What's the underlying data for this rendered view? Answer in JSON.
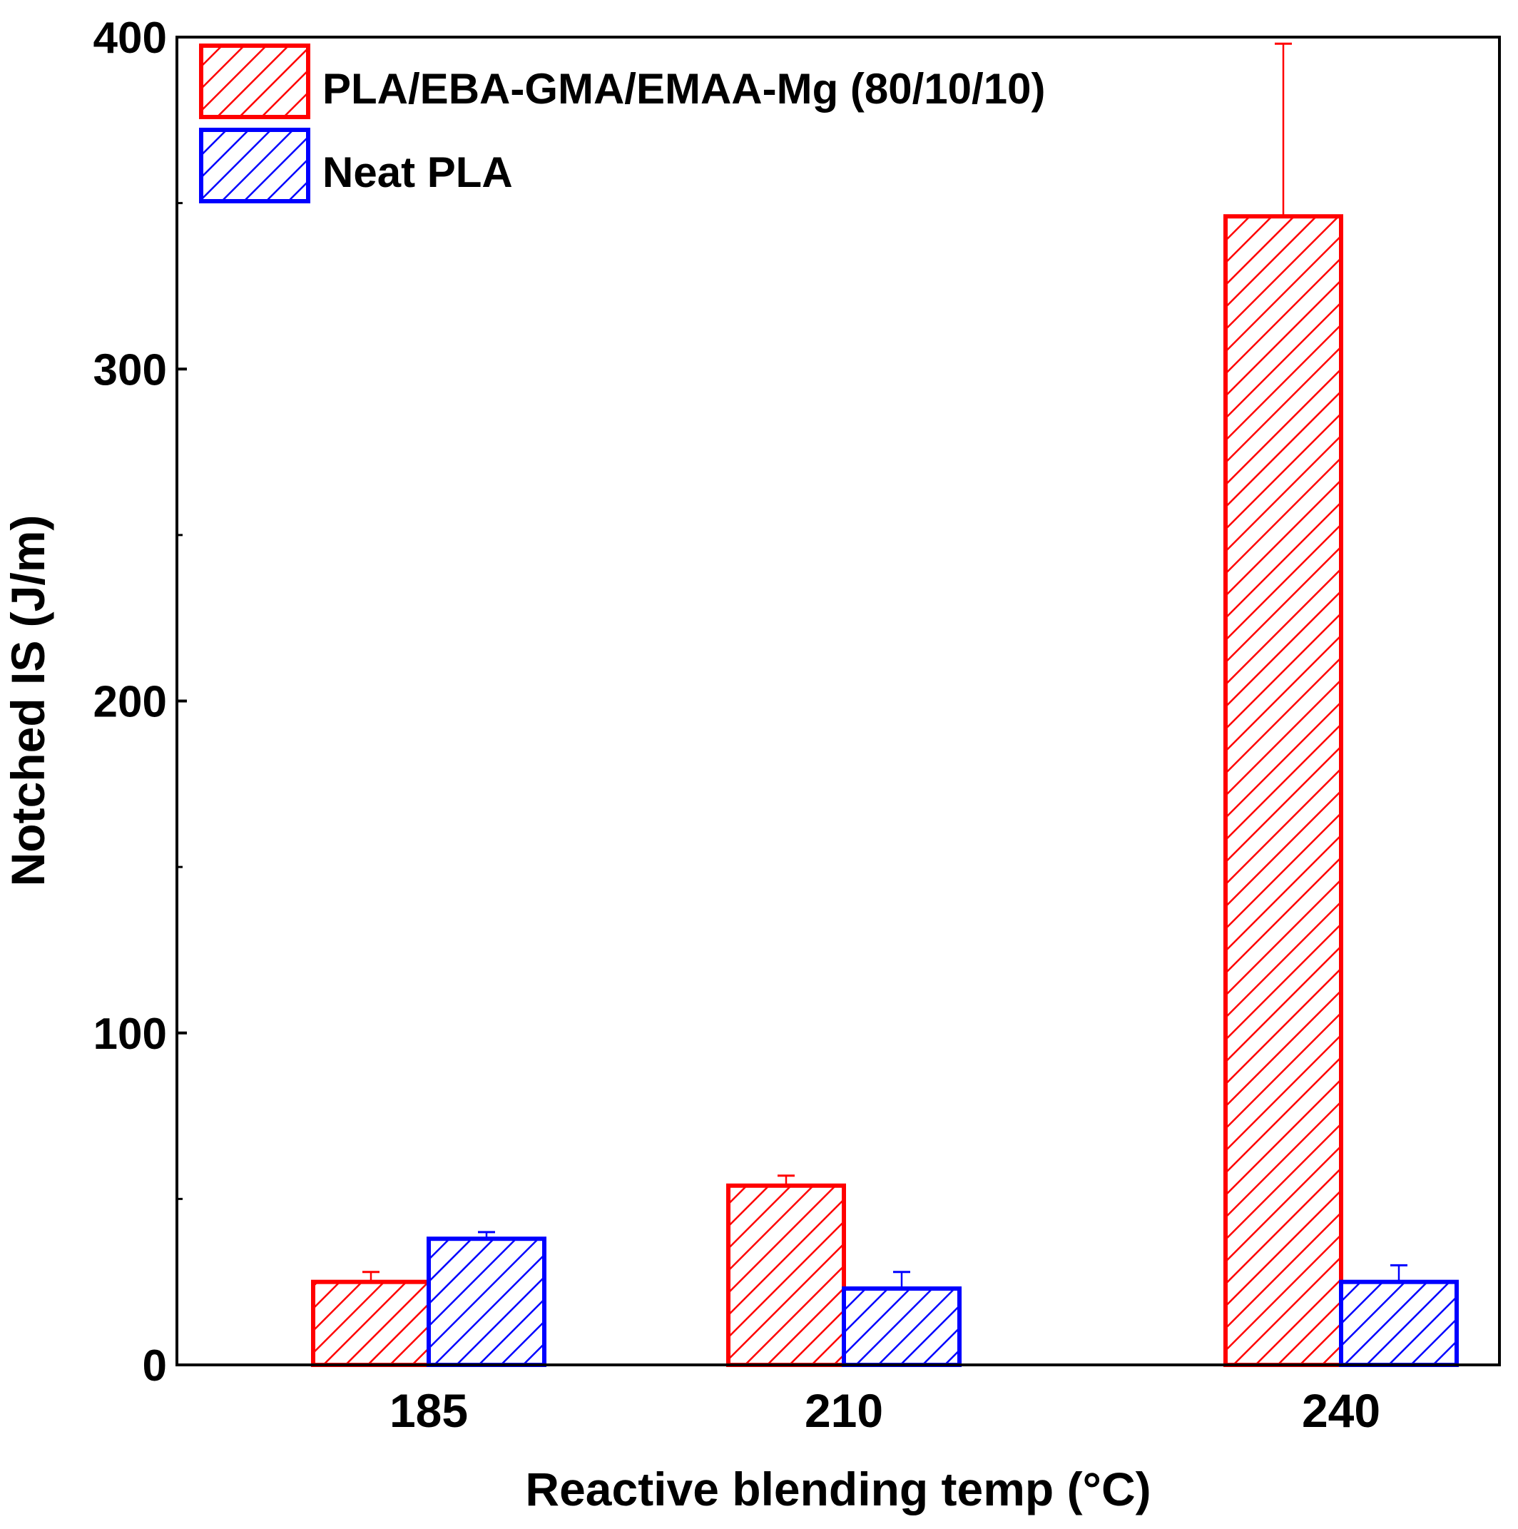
{
  "chart_data": {
    "type": "bar",
    "categories": [
      "185",
      "210",
      "240"
    ],
    "xlabel": "Reactive blending temp (°C)",
    "ylabel": "Notched IS (J/m)",
    "ylim": [
      0,
      400
    ],
    "yticks": [
      "0",
      "100",
      "200",
      "300",
      "400"
    ],
    "grid": false,
    "legend_position": "top-left",
    "series": [
      {
        "name": "PLA/EBA-GMA/EMAA-Mg (80/10/10)",
        "color": "#ff0000",
        "pattern": "diagonal-hatch",
        "values": [
          25,
          54,
          346
        ],
        "errors": [
          3,
          3,
          52
        ]
      },
      {
        "name": "Neat PLA",
        "color": "#0000ff",
        "pattern": "diagonal-hatch",
        "values": [
          38,
          23,
          25
        ],
        "errors": [
          2,
          5,
          5
        ]
      }
    ]
  }
}
